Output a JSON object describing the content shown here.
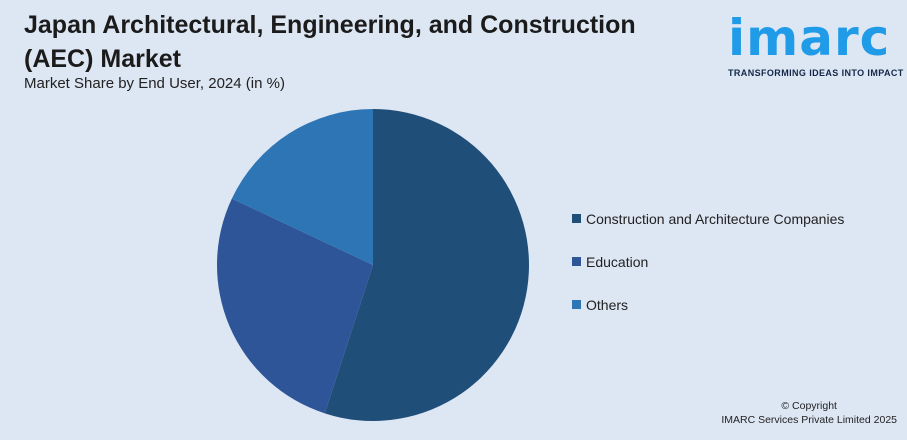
{
  "header": {
    "title": "Japan Architectural, Engineering, and Construction (AEC) Market",
    "subtitle": "Market Share by End User, 2024 (in %)"
  },
  "logo": {
    "word": "imarc",
    "tagline": "TRANSFORMING IDEAS INTO IMPACT"
  },
  "chart_data": {
    "type": "pie",
    "title": "Japan Architectural, Engineering, and Construction (AEC) Market",
    "subtitle": "Market Share by End User, 2024 (in %)",
    "legend_position": "right",
    "slices": [
      {
        "label": "Construction and Architecture Companies",
        "value": 55,
        "color": "#1f4e79"
      },
      {
        "label": "Education",
        "value": 27,
        "color": "#2e5597"
      },
      {
        "label": "Others",
        "value": 18,
        "color": "#2e75b6"
      }
    ]
  },
  "footer": {
    "copyright_line1": "© Copyright",
    "copyright_line2": "IMARC Services Private Limited 2025"
  }
}
